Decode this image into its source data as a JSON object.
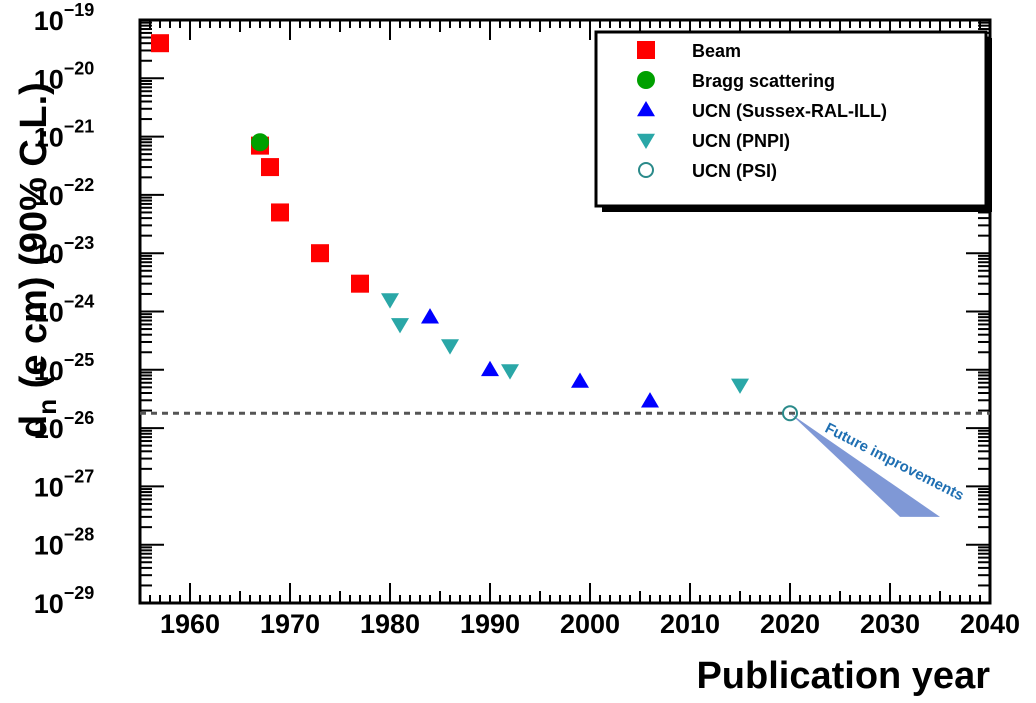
{
  "chart_data": {
    "type": "scatter",
    "xlabel": "Publication year",
    "ylabel_main": "d",
    "ylabel_sub": "n",
    "ylabel_rest": " (e cm) (90% C.L.)",
    "xlim": [
      1955,
      2040
    ],
    "ylim_exp": [
      -29,
      -19
    ],
    "y_scale": "log",
    "x_ticks": [
      1960,
      1970,
      1980,
      1990,
      2000,
      2010,
      2020,
      2030,
      2040
    ],
    "y_ticks": [
      {
        "base": "10",
        "exp": "−19",
        "e": -19
      },
      {
        "base": "10",
        "exp": "−20",
        "e": -20
      },
      {
        "base": "10",
        "exp": "−21",
        "e": -21
      },
      {
        "base": "10",
        "exp": "−22",
        "e": -22
      },
      {
        "base": "10",
        "exp": "−23",
        "e": -23
      },
      {
        "base": "10",
        "exp": "−24",
        "e": -24
      },
      {
        "base": "10",
        "exp": "−25",
        "e": -25
      },
      {
        "base": "10",
        "exp": "−26",
        "e": -26
      },
      {
        "base": "10",
        "exp": "−27",
        "e": -27
      },
      {
        "base": "10",
        "exp": "−28",
        "e": -28
      },
      {
        "base": "10",
        "exp": "−29",
        "e": -29
      }
    ],
    "grid": false,
    "legend_position": "top-right",
    "series": [
      {
        "name": "Beam",
        "marker": "square",
        "color": "#ff0000",
        "points": [
          {
            "x": 1957,
            "y": 4e-20
          },
          {
            "x": 1967,
            "y": 7e-22
          },
          {
            "x": 1968,
            "y": 3e-22
          },
          {
            "x": 1969,
            "y": 5e-23
          },
          {
            "x": 1973,
            "y": 1e-23
          },
          {
            "x": 1977,
            "y": 3e-24
          }
        ]
      },
      {
        "name": "Bragg scattering",
        "marker": "circle",
        "color": "#00a000",
        "points": [
          {
            "x": 1967,
            "y": 8e-22
          }
        ]
      },
      {
        "name": "UCN (Sussex-RAL-ILL)",
        "marker": "triangle-up",
        "color": "#0000ff",
        "points": [
          {
            "x": 1984,
            "y": 8e-25
          },
          {
            "x": 1990,
            "y": 1e-25
          },
          {
            "x": 1999,
            "y": 6.3e-26
          },
          {
            "x": 2006,
            "y": 2.9e-26
          }
        ]
      },
      {
        "name": "UCN (PNPI)",
        "marker": "triangle-down",
        "color": "#2aa7a7",
        "points": [
          {
            "x": 1980,
            "y": 1.6e-24
          },
          {
            "x": 1981,
            "y": 6e-25
          },
          {
            "x": 1986,
            "y": 2.6e-25
          },
          {
            "x": 1992,
            "y": 9.7e-26
          },
          {
            "x": 2015,
            "y": 5.5e-26
          }
        ]
      },
      {
        "name": "UCN (PSI)",
        "marker": "open-circle",
        "color": "#2a8a8a",
        "points": [
          {
            "x": 2020,
            "y": 1.8e-26
          }
        ]
      }
    ],
    "reference_line": {
      "y": 1.8e-26,
      "style": "dotted",
      "color": "#555555"
    },
    "annotation": {
      "text": "Future improvements",
      "color": "#1f6fb2",
      "fill": "#7f98d6",
      "wedge_data": [
        [
          2020,
          1.8e-26
        ],
        [
          2031,
          3e-28
        ],
        [
          2035,
          3e-28
        ]
      ]
    }
  }
}
